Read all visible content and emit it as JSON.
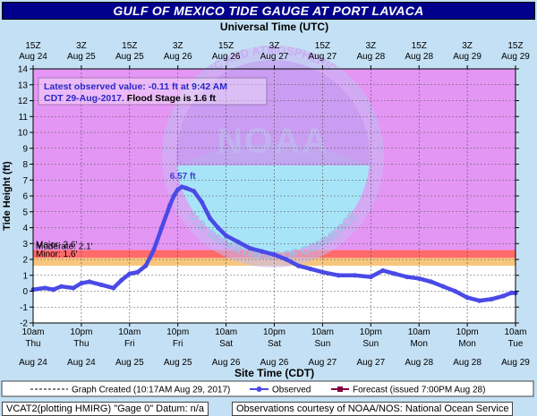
{
  "chart_data": {
    "type": "line",
    "title": "GULF OF MEXICO TIDE GAUGE AT PORT LAVACA",
    "top_axis_label": "Universal Time (UTC)",
    "xlabel": "Site Time (CDT)",
    "ylabel": "Tide Height (ft)",
    "ylim": [
      -2,
      14
    ],
    "yticks": [
      -2,
      -1,
      0,
      1,
      2,
      3,
      4,
      5,
      6,
      7,
      8,
      9,
      10,
      11,
      12,
      13,
      14
    ],
    "xlim": [
      "Aug 24 10am",
      "Aug 29 10am"
    ],
    "x_ticks_local": [
      {
        "time": "10am",
        "day": "Thu",
        "date": "Aug 24"
      },
      {
        "time": "10pm",
        "day": "Thu",
        "date": "Aug 24"
      },
      {
        "time": "10am",
        "day": "Fri",
        "date": "Aug 25"
      },
      {
        "time": "10pm",
        "day": "Fri",
        "date": "Aug 25"
      },
      {
        "time": "10am",
        "day": "Sat",
        "date": "Aug 26"
      },
      {
        "time": "10pm",
        "day": "Sat",
        "date": "Aug 26"
      },
      {
        "time": "10am",
        "day": "Sun",
        "date": "Aug 27"
      },
      {
        "time": "10pm",
        "day": "Sun",
        "date": "Aug 27"
      },
      {
        "time": "10am",
        "day": "Mon",
        "date": "Aug 28"
      },
      {
        "time": "10pm",
        "day": "Mon",
        "date": "Aug 28"
      },
      {
        "time": "10am",
        "day": "Tue",
        "date": "Aug 29"
      }
    ],
    "x_ticks_utc": [
      {
        "time": "15Z",
        "date": "Aug 24"
      },
      {
        "time": "3Z",
        "date": "Aug 25"
      },
      {
        "time": "15Z",
        "date": "Aug 25"
      },
      {
        "time": "3Z",
        "date": "Aug 26"
      },
      {
        "time": "15Z",
        "date": "Aug 26"
      },
      {
        "time": "3Z",
        "date": "Aug 27"
      },
      {
        "time": "15Z",
        "date": "Aug 27"
      },
      {
        "time": "3Z",
        "date": "Aug 28"
      },
      {
        "time": "15Z",
        "date": "Aug 28"
      },
      {
        "time": "3Z",
        "date": "Aug 29"
      },
      {
        "time": "15Z",
        "date": "Aug 29"
      }
    ],
    "stages": [
      {
        "label": "Minor: 1.6'",
        "from": 1.6,
        "to": 2.1,
        "color": "#f7c67c"
      },
      {
        "label": "Moderate: 2.1'",
        "from": 2.1,
        "to": 2.6,
        "color": "#ff6a6a"
      },
      {
        "label": "Major: 2.6'",
        "from": 2.6,
        "to": 14,
        "color": "#e496f5"
      }
    ],
    "info_box": {
      "line1": "Latest observed value: -0.11 ft at 9:42 AM",
      "line2a": "CDT 29-Aug-2017.",
      "line2b": " Flood Stage is 1.6 ft"
    },
    "peak_label": "6.57 ft",
    "peak": {
      "x": "Aug 25 11pm",
      "y": 6.57
    },
    "series": [
      {
        "name": "Observed",
        "color": "#4a4ae6",
        "x": [
          "Aug 24 10am",
          "Aug 24 1pm",
          "Aug 24 3pm",
          "Aug 24 5pm",
          "Aug 24 8pm",
          "Aug 24 10pm",
          "Aug 25 12am",
          "Aug 25 3am",
          "Aug 25 6am",
          "Aug 25 8am",
          "Aug 25 10am",
          "Aug 25 12pm",
          "Aug 25 2pm",
          "Aug 25 4pm",
          "Aug 25 6pm",
          "Aug 25 8pm",
          "Aug 25 9pm",
          "Aug 25 10pm",
          "Aug 25 11pm",
          "Aug 26 12am",
          "Aug 26 2am",
          "Aug 26 4am",
          "Aug 26 6am",
          "Aug 26 8am",
          "Aug 26 10am",
          "Aug 26 1pm",
          "Aug 26 4pm",
          "Aug 26 7pm",
          "Aug 26 10pm",
          "Aug 27 1am",
          "Aug 27 4am",
          "Aug 27 7am",
          "Aug 27 10am",
          "Aug 27 2pm",
          "Aug 27 6pm",
          "Aug 27 10pm",
          "Aug 28 1am",
          "Aug 28 4am",
          "Aug 28 7am",
          "Aug 28 10am",
          "Aug 28 1pm",
          "Aug 28 4pm",
          "Aug 28 7pm",
          "Aug 28 10pm",
          "Aug 29 1am",
          "Aug 29 4am",
          "Aug 29 7am",
          "Aug 29 9am",
          "Aug 29 10am"
        ],
        "y": [
          0.1,
          0.2,
          0.1,
          0.3,
          0.2,
          0.5,
          0.6,
          0.4,
          0.2,
          0.7,
          1.1,
          1.2,
          1.6,
          2.6,
          4.0,
          5.4,
          6.0,
          6.4,
          6.57,
          6.5,
          6.3,
          5.6,
          4.6,
          4.0,
          3.5,
          3.1,
          2.7,
          2.5,
          2.3,
          2.0,
          1.6,
          1.4,
          1.2,
          1.0,
          1.0,
          0.9,
          1.3,
          1.1,
          0.9,
          0.8,
          0.6,
          0.3,
          0.0,
          -0.4,
          -0.6,
          -0.5,
          -0.3,
          -0.1,
          -0.11
        ]
      }
    ],
    "legend": {
      "graph_created": "Graph Created (10:17AM Aug 29, 2017)",
      "observed": "Observed",
      "forecast": "Forecast (issued 7:00PM Aug 28)"
    }
  },
  "footer": {
    "left": "VCAT2(plotting HMIRG) \"Gage 0\" Datum: n/a",
    "right": "Observations courtesy of NOAA/NOS: National Ocean Service"
  },
  "watermark": {
    "text": "NOAA",
    "arc_top": "NATIONAL OCEANIC AND ATMOSPHERIC ADMINISTRATION",
    "arc_bottom": "U.S. DEPARTMENT OF COMMERCE"
  }
}
